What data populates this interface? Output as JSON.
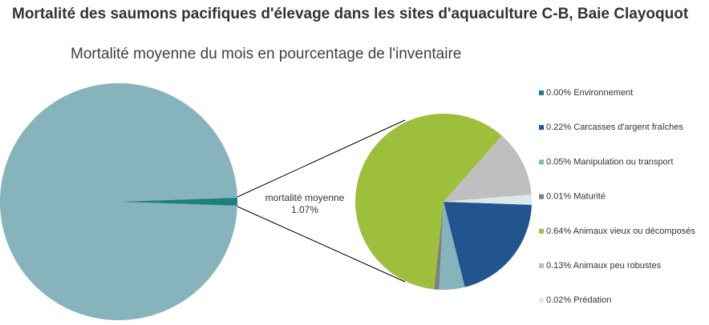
{
  "chart_data": {
    "type": "pie",
    "title": "Mortalité des saumons pacifiques d'élevage dans les sites d'aquaculture C-B, Baie Clayoquot",
    "subtitle": "Mortalité moyenne du mois en pourcentage de l'inventaire",
    "primary": {
      "label": "mortalité moyenne",
      "value_label": "1.07%",
      "value": 1.07,
      "remainder": 98.93,
      "colors": {
        "main": "#87b4bc",
        "slice": "#1f7f80"
      }
    },
    "series": [
      {
        "name": "Environnement",
        "value": 0.0,
        "label": "0.00% Environnement",
        "color": "#1f7f80"
      },
      {
        "name": "Carcasses d'argent fraîches",
        "value": 0.22,
        "label": "0.22% Carcasses d'argent fraîches",
        "color": "#22558f"
      },
      {
        "name": "Manipulation ou transport",
        "value": 0.05,
        "label": "0.05% Manipulation ou transport",
        "color": "#87b4bc"
      },
      {
        "name": "Maturité",
        "value": 0.01,
        "label": "0.01% Maturité",
        "color": "#7f7f7f"
      },
      {
        "name": "Animaux vieux ou décomposés",
        "value": 0.64,
        "label": "0.64% Animaux vieux ou décomposés",
        "color": "#9dbf3b"
      },
      {
        "name": "Animaux peu robustes",
        "value": 0.13,
        "label": "0.13% Animaux peu robustes",
        "color": "#bfbfbf"
      },
      {
        "name": "Prédation",
        "value": 0.02,
        "label": "0.02% Prédation",
        "color": "#dbe9e9"
      }
    ],
    "legend": "right"
  }
}
